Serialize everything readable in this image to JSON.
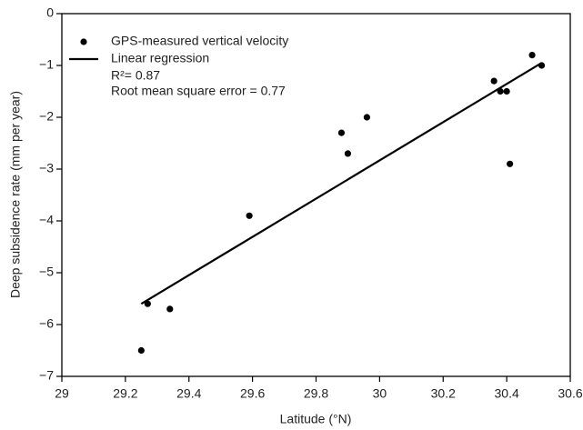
{
  "chart_data": {
    "type": "scatter",
    "xlabel": "Latitude (°N)",
    "ylabel": "Deep subsidence rate (mm per year)",
    "series": [
      {
        "name": "GPS-measured vertical velocity",
        "type": "scatter",
        "color": "#000000",
        "x": [
          29.25,
          29.27,
          29.34,
          29.59,
          29.88,
          29.9,
          29.96,
          30.36,
          30.38,
          30.4,
          30.41,
          30.48,
          30.51
        ],
        "values": [
          -6.5,
          -5.6,
          -5.7,
          -3.9,
          -2.3,
          -2.7,
          -2.0,
          -1.3,
          -1.5,
          -1.5,
          -2.9,
          -0.8,
          -1.0
        ]
      },
      {
        "name": "Linear regression",
        "type": "line",
        "color": "#000000",
        "x": [
          29.25,
          30.51
        ],
        "values": [
          -5.6,
          -0.95
        ]
      }
    ],
    "annotations": [
      "R²= 0.87",
      "Root mean square error = 0.77"
    ],
    "xlim": [
      29,
      30.6
    ],
    "xticks": [
      29,
      29.2,
      29.4,
      29.6,
      29.8,
      30,
      30.2,
      30.4,
      30.6
    ],
    "ylim": [
      -7,
      0
    ],
    "yticks": [
      0,
      {
        "value": -1,
        "label": "−1"
      },
      {
        "value": -2,
        "label": "−2"
      },
      {
        "value": -3,
        "label": "−3"
      },
      {
        "value": -4,
        "label": "−4"
      },
      {
        "value": -5,
        "label": "−5"
      },
      {
        "value": -6,
        "label": "−6"
      },
      {
        "value": -7,
        "label": "−7"
      }
    ],
    "grid": false,
    "legend": "upper-left"
  }
}
